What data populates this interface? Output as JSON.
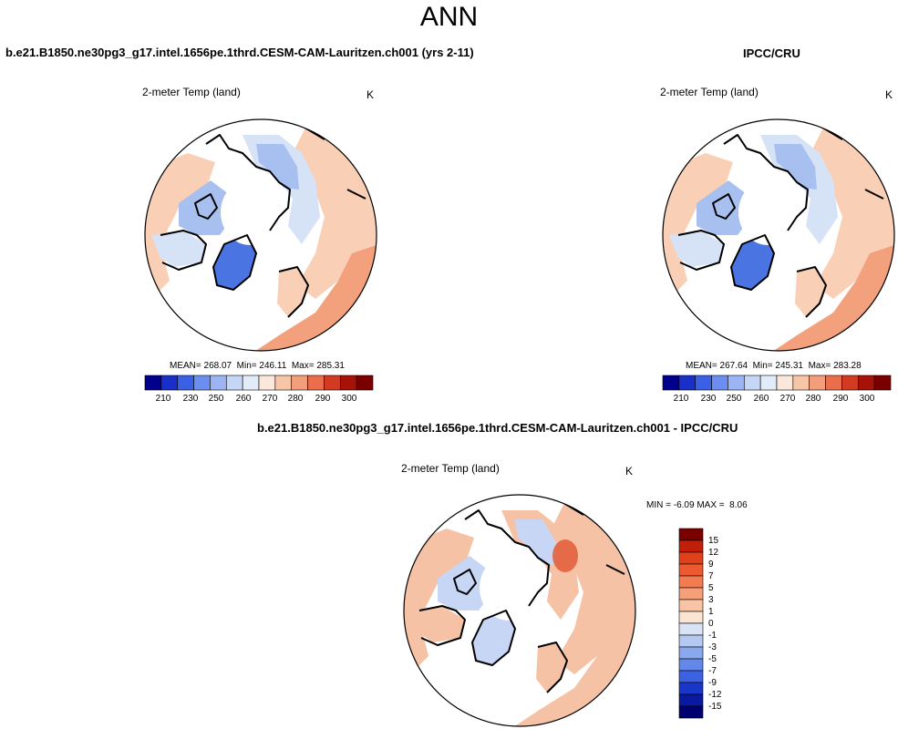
{
  "figure": {
    "title": "ANN",
    "left_case": "b.e21.B1850.ne30pg3_g17.intel.1656pe.1thrd.CESM-CAM-Lauritzen.ch001 (yrs 2-11)",
    "right_case": "IPCC/CRU",
    "diff_case": "b.e21.B1850.ne30pg3_g17.intel.1656pe.1thrd.CESM-CAM-Lauritzen.ch001 - IPCC/CRU"
  },
  "panels": {
    "model": {
      "title": "2-meter Temp (land)",
      "unit": "K",
      "mean_label": "MEAN=",
      "mean": "268.07",
      "min_label": "Min=",
      "min": "246.11",
      "max_label": "Max=",
      "max": "285.31"
    },
    "obs": {
      "title": "2-meter Temp (land)",
      "unit": "K",
      "mean_label": "MEAN=",
      "mean": "267.64",
      "min_label": "Min=",
      "min": "245.31",
      "max_label": "Max=",
      "max": "283.28"
    },
    "diff": {
      "title": "2-meter Temp (land)",
      "unit": "K",
      "min_label": "MIN =",
      "min": "-6.09",
      "max_label": "MAX =",
      "max": "8.06"
    }
  },
  "abs_colorbar": {
    "ticks": [
      "210",
      "230",
      "250",
      "260",
      "270",
      "280",
      "290",
      "300"
    ],
    "colors": [
      "#00008c",
      "#1a2fc8",
      "#3a60e6",
      "#6c8ef0",
      "#9cb4f4",
      "#c6d6f6",
      "#e2ebf8",
      "#fbe8dc",
      "#f7c6a8",
      "#f29e7a",
      "#ea6e4c",
      "#d23a22",
      "#a61208",
      "#7a0000"
    ]
  },
  "diff_colorbar": {
    "ticks": [
      "15",
      "12",
      "9",
      "7",
      "5",
      "3",
      "1",
      "0",
      "-1",
      "-3",
      "-5",
      "-7",
      "-9",
      "-12",
      "-15"
    ],
    "colors": [
      "#7a0000",
      "#c0200a",
      "#e0401a",
      "#ee5a30",
      "#f47a50",
      "#f6a07a",
      "#f8c4a4",
      "#fbe4d4",
      "#d8e4f6",
      "#b4c8f2",
      "#8aa8ee",
      "#6488ea",
      "#3c62e4",
      "#1a36c8",
      "#0a1aa0",
      "#00006e"
    ]
  },
  "map_colors": {
    "ocean": "#ffffff",
    "warm_light": "#f9d0b6",
    "warm_mid": "#f3a07c",
    "warm_deep": "#e8704c",
    "cool_light": "#d6e2f6",
    "cool_mid": "#a8c0f0",
    "cool_deep": "#4a74e2",
    "diff_pos": "#f6c2a6",
    "diff_strong": "#e25a36",
    "diff_neg": "#c6d6f4"
  }
}
